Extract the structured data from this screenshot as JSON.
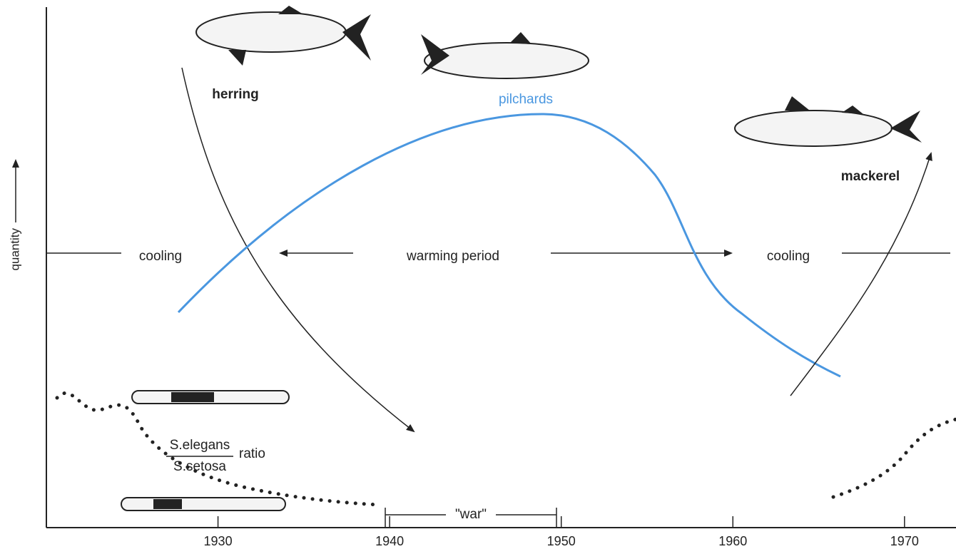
{
  "axis": {
    "y_label": "quantity",
    "xlim": [
      1920,
      1973
    ],
    "xticks": [
      1930,
      1940,
      1950,
      1960,
      1970
    ]
  },
  "labels": {
    "herring": "herring",
    "pilchards": "pilchards",
    "mackerel": "mackerel",
    "cooling_left": "cooling",
    "warming": "warming period",
    "cooling_right": "cooling",
    "ratio_numerator": "S.elegans",
    "ratio_denominator": "S.setosa",
    "ratio": "ratio",
    "war": "\"war\""
  }
}
